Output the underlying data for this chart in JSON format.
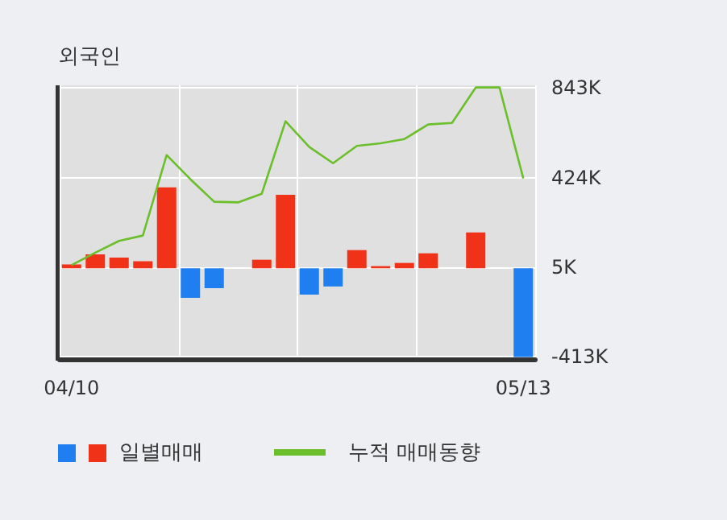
{
  "chart_data": {
    "type": "bar",
    "title": "외국인",
    "categories": [
      "04/10",
      null,
      null,
      null,
      null,
      null,
      null,
      null,
      null,
      null,
      null,
      null,
      null,
      null,
      null,
      null,
      null,
      null,
      null,
      "05/13"
    ],
    "series": [
      {
        "name": "일별매매",
        "values": [
          18,
          65,
          50,
          33,
          378,
          -138,
          -93,
          0,
          40,
          343,
          -123,
          -85,
          85,
          10,
          25,
          70,
          0,
          168,
          0,
          -415
        ],
        "colors": [
          "#f03218",
          "#f03218",
          "#f03218",
          "#f03218",
          "#f03218",
          "#1f7ff0",
          "#1f7ff0",
          "#f03218",
          "#f03218",
          "#f03218",
          "#1f7ff0",
          "#1f7ff0",
          "#f03218",
          "#f03218",
          "#f03218",
          "#f03218",
          "#f03218",
          "#f03218",
          "#f03218",
          "#1f7ff0"
        ]
      },
      {
        "name": "누적 매매동향",
        "type": "line",
        "color": "#6abf2a",
        "values": [
          15,
          73,
          128,
          153,
          529,
          416,
          311,
          308,
          348,
          687,
          567,
          491,
          572,
          584,
          604,
          672,
          679,
          845,
          845,
          420
        ]
      }
    ],
    "ylim": [
      -424,
      855
    ],
    "yticks": [
      {
        "value": -413,
        "label": "-413K"
      },
      {
        "value": 5,
        "label": "5K"
      },
      {
        "value": 424,
        "label": "424K"
      },
      {
        "value": 843,
        "label": "843K"
      }
    ],
    "grid": true,
    "legend": "bottom",
    "marker": "none"
  }
}
